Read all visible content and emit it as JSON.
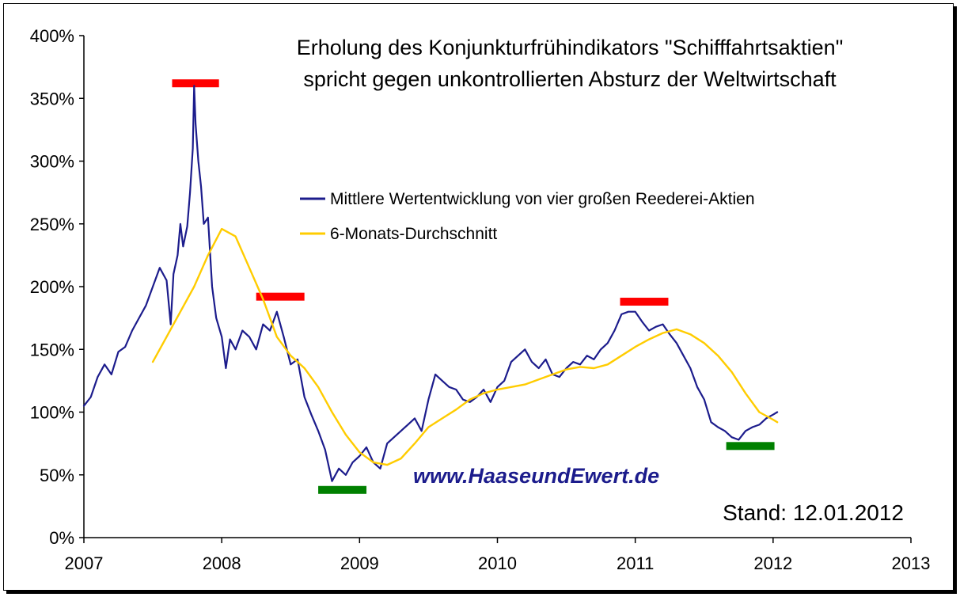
{
  "chart_data": {
    "type": "line",
    "title_lines": [
      "Erholung des Konjunkturfrühindikators \"Schifffahrtsaktien\"",
      "spricht gegen unkontrollierten Absturz der Weltwirtschaft"
    ],
    "xlabel": "",
    "ylabel": "",
    "x_ticks": [
      "2007",
      "2008",
      "2009",
      "2010",
      "2011",
      "2012",
      "2013"
    ],
    "y_ticks": [
      "0%",
      "50%",
      "100%",
      "150%",
      "200%",
      "250%",
      "300%",
      "350%",
      "400%"
    ],
    "xlim": [
      2007,
      2013
    ],
    "ylim": [
      0,
      400
    ],
    "grid": false,
    "legend_position": "center",
    "series": [
      {
        "name": "Mittlere Wertentwicklung von vier großen Reederei-Aktien",
        "color": "#1c1c8c",
        "x": [
          2007.0,
          2007.05,
          2007.1,
          2007.15,
          2007.2,
          2007.25,
          2007.3,
          2007.35,
          2007.4,
          2007.45,
          2007.5,
          2007.55,
          2007.6,
          2007.63,
          2007.65,
          2007.68,
          2007.7,
          2007.72,
          2007.75,
          2007.77,
          2007.79,
          2007.8,
          2007.81,
          2007.83,
          2007.85,
          2007.87,
          2007.9,
          2007.93,
          2007.96,
          2008.0,
          2008.03,
          2008.06,
          2008.1,
          2008.15,
          2008.2,
          2008.25,
          2008.3,
          2008.35,
          2008.4,
          2008.45,
          2008.5,
          2008.55,
          2008.6,
          2008.65,
          2008.7,
          2008.75,
          2008.8,
          2008.85,
          2008.9,
          2008.95,
          2009.0,
          2009.05,
          2009.1,
          2009.15,
          2009.2,
          2009.25,
          2009.3,
          2009.35,
          2009.4,
          2009.45,
          2009.5,
          2009.55,
          2009.6,
          2009.65,
          2009.7,
          2009.75,
          2009.8,
          2009.85,
          2009.9,
          2009.95,
          2010.0,
          2010.05,
          2010.1,
          2010.15,
          2010.2,
          2010.25,
          2010.3,
          2010.35,
          2010.4,
          2010.45,
          2010.5,
          2010.55,
          2010.6,
          2010.65,
          2010.7,
          2010.75,
          2010.8,
          2010.85,
          2010.9,
          2010.95,
          2011.0,
          2011.05,
          2011.1,
          2011.15,
          2011.2,
          2011.25,
          2011.3,
          2011.35,
          2011.4,
          2011.45,
          2011.5,
          2011.55,
          2011.6,
          2011.65,
          2011.7,
          2011.75,
          2011.8,
          2011.85,
          2011.9,
          2011.95,
          2012.0,
          2012.03
        ],
        "y": [
          105,
          112,
          128,
          138,
          130,
          148,
          152,
          165,
          175,
          185,
          200,
          215,
          205,
          170,
          210,
          225,
          250,
          232,
          248,
          275,
          310,
          360,
          330,
          300,
          280,
          250,
          255,
          200,
          175,
          160,
          135,
          158,
          150,
          165,
          160,
          150,
          170,
          165,
          180,
          160,
          138,
          142,
          112,
          98,
          85,
          70,
          45,
          55,
          50,
          60,
          65,
          72,
          60,
          55,
          75,
          80,
          85,
          90,
          95,
          85,
          110,
          130,
          125,
          120,
          118,
          110,
          108,
          112,
          118,
          108,
          120,
          125,
          140,
          145,
          150,
          140,
          135,
          142,
          130,
          128,
          135,
          140,
          138,
          145,
          142,
          150,
          155,
          165,
          178,
          180,
          180,
          172,
          165,
          168,
          170,
          162,
          155,
          145,
          135,
          120,
          110,
          92,
          88,
          85,
          80,
          78,
          85,
          88,
          90,
          95,
          98,
          100
        ]
      },
      {
        "name": "6-Monats-Durchschnitt",
        "color": "#ffcc00",
        "x": [
          2007.5,
          2007.6,
          2007.7,
          2007.8,
          2007.9,
          2008.0,
          2008.1,
          2008.2,
          2008.3,
          2008.4,
          2008.5,
          2008.6,
          2008.7,
          2008.8,
          2008.9,
          2009.0,
          2009.1,
          2009.2,
          2009.3,
          2009.4,
          2009.5,
          2009.6,
          2009.7,
          2009.8,
          2009.9,
          2010.0,
          2010.1,
          2010.2,
          2010.3,
          2010.4,
          2010.5,
          2010.6,
          2010.7,
          2010.8,
          2010.9,
          2011.0,
          2011.1,
          2011.2,
          2011.3,
          2011.4,
          2011.5,
          2011.6,
          2011.7,
          2011.8,
          2011.9,
          2012.0,
          2012.03
        ],
        "y": [
          140,
          160,
          180,
          200,
          225,
          246,
          240,
          215,
          190,
          160,
          145,
          135,
          120,
          100,
          82,
          68,
          60,
          58,
          63,
          75,
          88,
          95,
          102,
          110,
          115,
          118,
          120,
          122,
          126,
          130,
          134,
          136,
          135,
          138,
          145,
          152,
          158,
          163,
          166,
          162,
          155,
          145,
          132,
          115,
          100,
          94,
          92
        ]
      }
    ],
    "annotations": {
      "peak_bars_red": [
        {
          "x_start": 2007.64,
          "x_end": 2007.98,
          "y": 362
        },
        {
          "x_start": 2008.25,
          "x_end": 2008.6,
          "y": 192
        },
        {
          "x_start": 2010.89,
          "x_end": 2011.24,
          "y": 188
        }
      ],
      "trough_bars_green": [
        {
          "x_start": 2008.7,
          "x_end": 2009.05,
          "y": 38
        },
        {
          "x_start": 2011.66,
          "x_end": 2012.01,
          "y": 73
        }
      ]
    }
  },
  "footer": {
    "url": "www.HaaseundEwert.de",
    "stand": "Stand: 12.01.2012"
  },
  "colors": {
    "main_series": "#1c1c8c",
    "average_series": "#ffcc00",
    "peak_marker": "#ff0000",
    "trough_marker": "#008000",
    "url_text": "#1c1c8c"
  }
}
